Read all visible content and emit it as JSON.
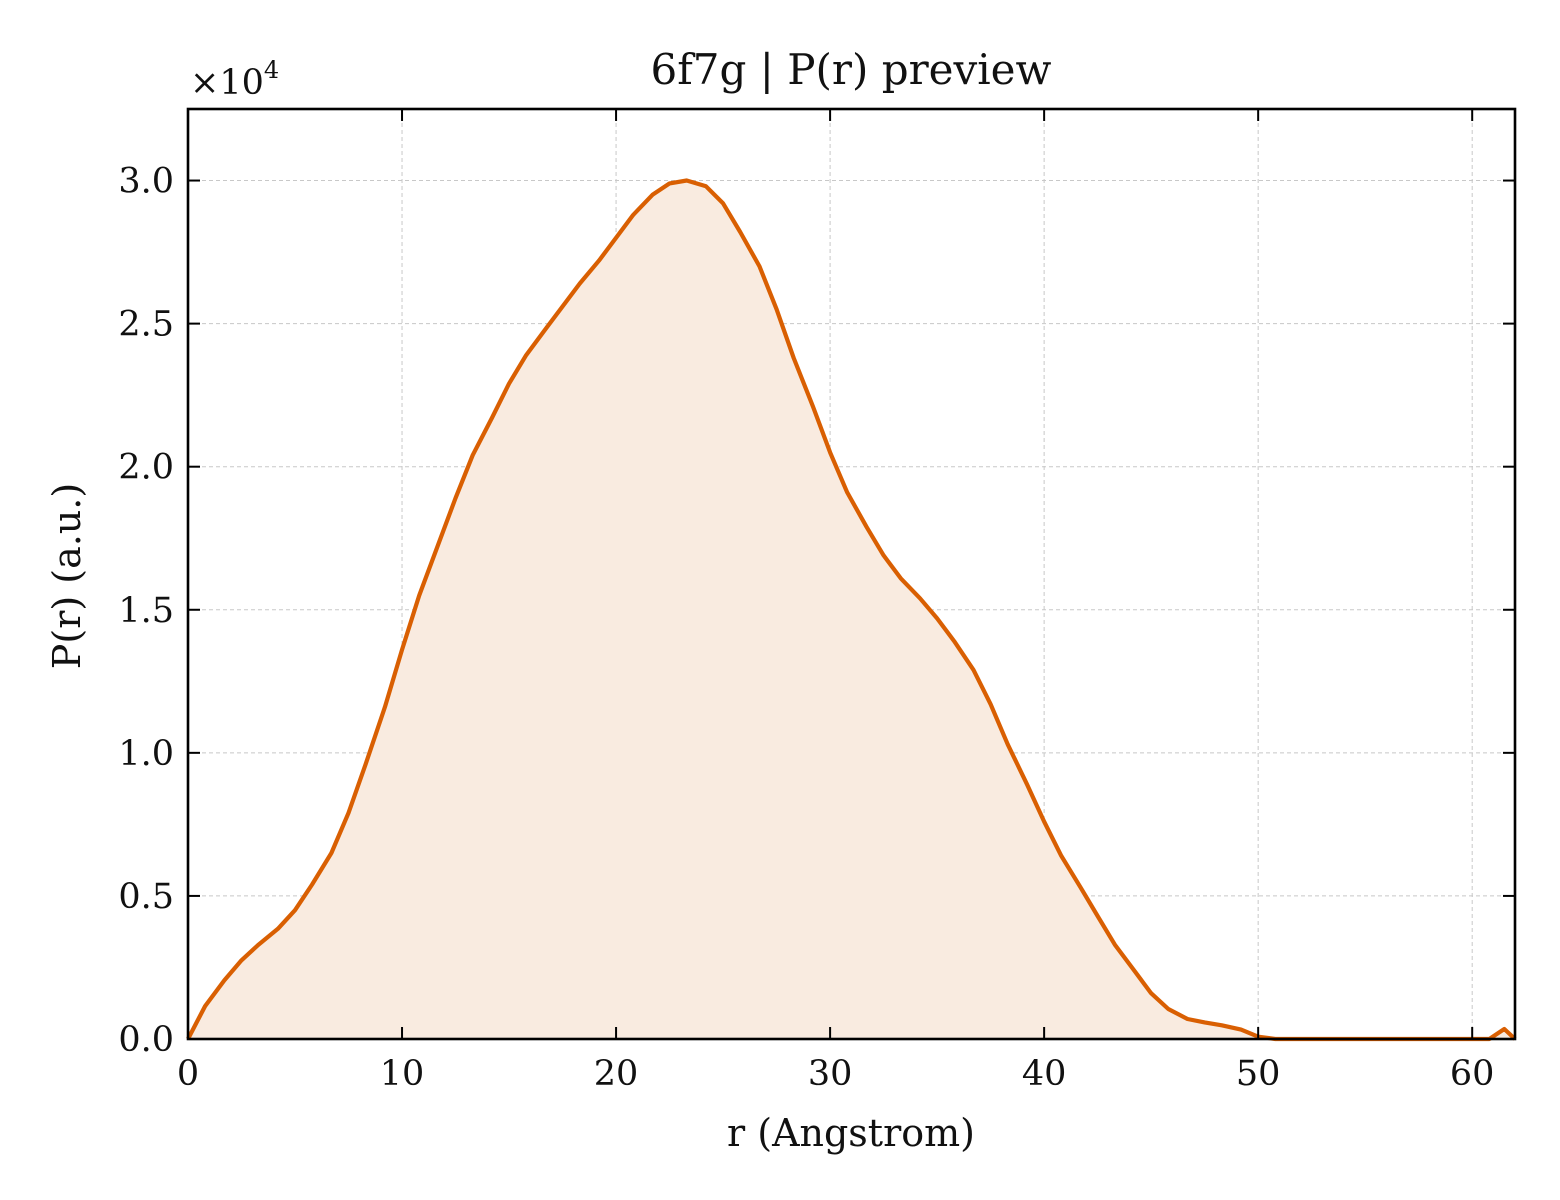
{
  "chart_data": {
    "type": "area",
    "title": "6f7g | P(r) preview",
    "xlabel": "r (Angstrom)",
    "ylabel": "P(r) (a.u.)",
    "y_offset_label": "×10",
    "y_offset_exponent": "4",
    "xlim": [
      0,
      62
    ],
    "ylim": [
      0,
      32500
    ],
    "x_ticks": [
      0,
      10,
      20,
      30,
      40,
      50,
      60
    ],
    "x_tick_labels": [
      "0",
      "10",
      "20",
      "30",
      "40",
      "50",
      "60"
    ],
    "y_ticks": [
      0,
      5000,
      10000,
      15000,
      20000,
      25000,
      30000
    ],
    "y_tick_labels": [
      "0.0",
      "0.5",
      "1.0",
      "1.5",
      "2.0",
      "2.5",
      "3.0"
    ],
    "grid": true,
    "line_color": "#d95f02",
    "fill_color": "#f9ebe0",
    "x": [
      0,
      0.8,
      1.7,
      2.5,
      3.3,
      4.2,
      5.0,
      5.8,
      6.7,
      7.5,
      8.3,
      9.2,
      10.0,
      10.8,
      11.7,
      12.5,
      13.3,
      14.2,
      15.0,
      15.8,
      16.7,
      17.5,
      18.3,
      19.2,
      20.0,
      20.8,
      21.7,
      22.5,
      23.3,
      24.2,
      25.0,
      25.8,
      26.7,
      27.5,
      28.3,
      29.2,
      30.0,
      30.8,
      31.7,
      32.5,
      33.3,
      34.2,
      35.0,
      35.8,
      36.7,
      37.5,
      38.3,
      39.2,
      40.0,
      40.8,
      41.7,
      42.5,
      43.3,
      44.2,
      45.0,
      45.8,
      46.7,
      47.5,
      48.3,
      49.2,
      50.0,
      50.8,
      51.7,
      52.5,
      53.3,
      54.2,
      55.0,
      55.8,
      56.7,
      57.5,
      58.3,
      59.2,
      60.0,
      60.8,
      61.5,
      62.0
    ],
    "values": [
      0,
      1150,
      2050,
      2750,
      3300,
      3850,
      4500,
      5400,
      6500,
      7900,
      9600,
      11600,
      13600,
      15500,
      17300,
      18900,
      20400,
      21700,
      22900,
      23900,
      24800,
      25600,
      26400,
      27200,
      28000,
      28800,
      29500,
      29900,
      30000,
      29800,
      29200,
      28200,
      27000,
      25500,
      23800,
      22100,
      20500,
      19100,
      17900,
      16900,
      16100,
      15400,
      14700,
      13900,
      12900,
      11700,
      10300,
      8900,
      7600,
      6400,
      5300,
      4300,
      3300,
      2400,
      1600,
      1050,
      700,
      580,
      480,
      330,
      80,
      0,
      0,
      0,
      0,
      0,
      0,
      0,
      0,
      0,
      0,
      0,
      0,
      0,
      350,
      0
    ]
  }
}
